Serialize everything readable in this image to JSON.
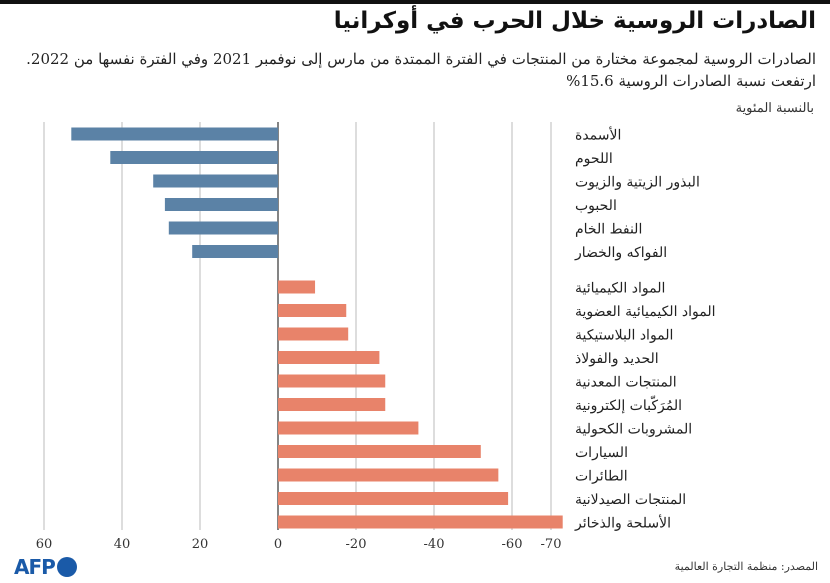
{
  "title": "الصادرات الروسية خلال الحرب في أوكرانيا",
  "subtitle_lines": [
    "الصادرات الروسية لمجموعة مختارة من المنتجات في الفترة الممتدة من مارس إلى نوفمبر 2021 وفي الفترة نفسها من 2022.",
    "ارتفعت نسبة الصادرات الروسية 15.6%"
  ],
  "unit_label": "بالنسبة المئوية",
  "source": "المصدر: منظمة التجارة العالمية",
  "logo_text": "AFP",
  "colors": {
    "increase": "#5b82a6",
    "decrease": "#e8836a",
    "grid": "#bbbbbb",
    "axis": "#333333"
  },
  "chart_data": {
    "type": "bar",
    "orientation": "horizontal",
    "x_axis": "reversed",
    "xlim": [
      -72,
      60
    ],
    "ticks": [
      60,
      40,
      20,
      0,
      -20,
      -40,
      -60,
      -70
    ],
    "tick_labels": [
      "60",
      "40",
      "20",
      "0",
      "-20",
      "-40",
      "-60",
      "-70"
    ],
    "grid": true,
    "groups": [
      {
        "color_key": "increase",
        "bars": [
          {
            "category": "الأسمدة",
            "value": 53
          },
          {
            "category": "اللحوم",
            "value": 43
          },
          {
            "category": "البذور الزيتية والزيوت",
            "value": 32
          },
          {
            "category": "الحبوب",
            "value": 29
          },
          {
            "category": "النفط الخام",
            "value": 28
          },
          {
            "category": "الفواكه والخضار",
            "value": 22
          }
        ]
      },
      {
        "color_key": "decrease",
        "bars": [
          {
            "category": "المواد الكيميائية",
            "value": -9.5
          },
          {
            "category": "المواد الكيميائية العضوية",
            "value": -17.5
          },
          {
            "category": "المواد البلاستيكية",
            "value": -18
          },
          {
            "category": "الحديد والفولاذ",
            "value": -26
          },
          {
            "category": "المنتجات المعدنية",
            "value": -27.5
          },
          {
            "category": "المُرَكّبات إلكترونية",
            "value": -27.5
          },
          {
            "category": "المشروبات الكحولية",
            "value": -36
          },
          {
            "category": "السيارات",
            "value": -52
          },
          {
            "category": "الطائرات",
            "value": -56.5
          },
          {
            "category": "المنتجات الصيدلانية",
            "value": -59
          },
          {
            "category": "الأسلحة والذخائر",
            "value": -73
          }
        ]
      }
    ]
  }
}
